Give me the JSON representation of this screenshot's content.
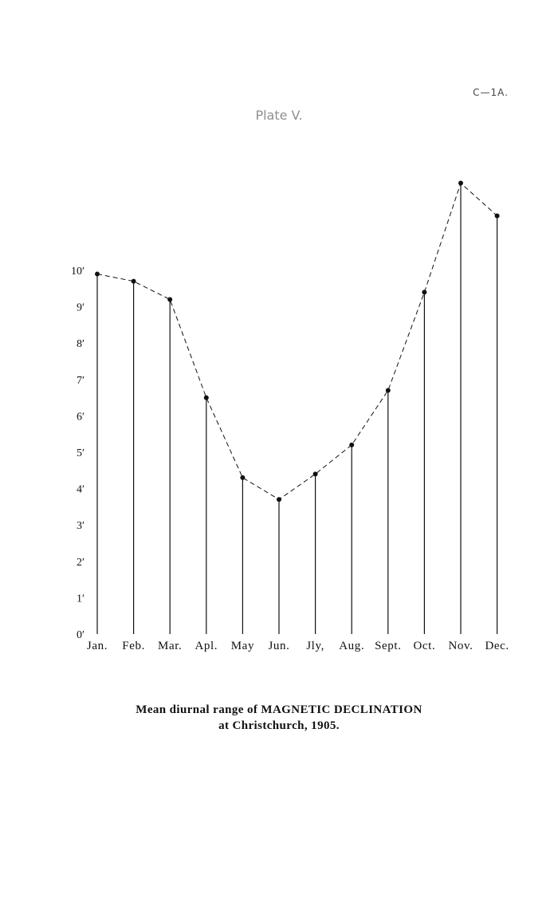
{
  "page": {
    "reference": "C—1A.",
    "plate": "Plate V."
  },
  "caption": {
    "line1": "Mean diurnal range of MAGNETIC DECLINATION",
    "line2": "at Christchurch, 1905."
  },
  "chart_data": {
    "type": "line",
    "title": "Mean diurnal range of MAGNETIC DECLINATION at Christchurch, 1905.",
    "categories": [
      "Jan.",
      "Feb.",
      "Mar.",
      "Apl.",
      "May",
      "Jun.",
      "Jly,",
      "Aug.",
      "Sept.",
      "Oct.",
      "Nov.",
      "Dec."
    ],
    "series": [
      {
        "values": [
          9.9,
          9.7,
          9.2,
          6.5,
          4.3,
          3.7,
          4.4,
          5.2,
          6.7,
          9.4,
          12.4,
          11.5
        ]
      }
    ],
    "yticks": [
      0,
      1,
      2,
      3,
      4,
      5,
      6,
      7,
      8,
      9,
      10
    ],
    "ytick_labels": [
      "0′",
      "1′",
      "2′",
      "3′",
      "4′",
      "5′",
      "6′",
      "7′",
      "8′",
      "9′",
      "10′"
    ],
    "ylim": [
      0,
      12.4
    ],
    "line_style": "dashed",
    "drop_lines": true,
    "grid": false,
    "legend": "none",
    "color": "#111111"
  }
}
